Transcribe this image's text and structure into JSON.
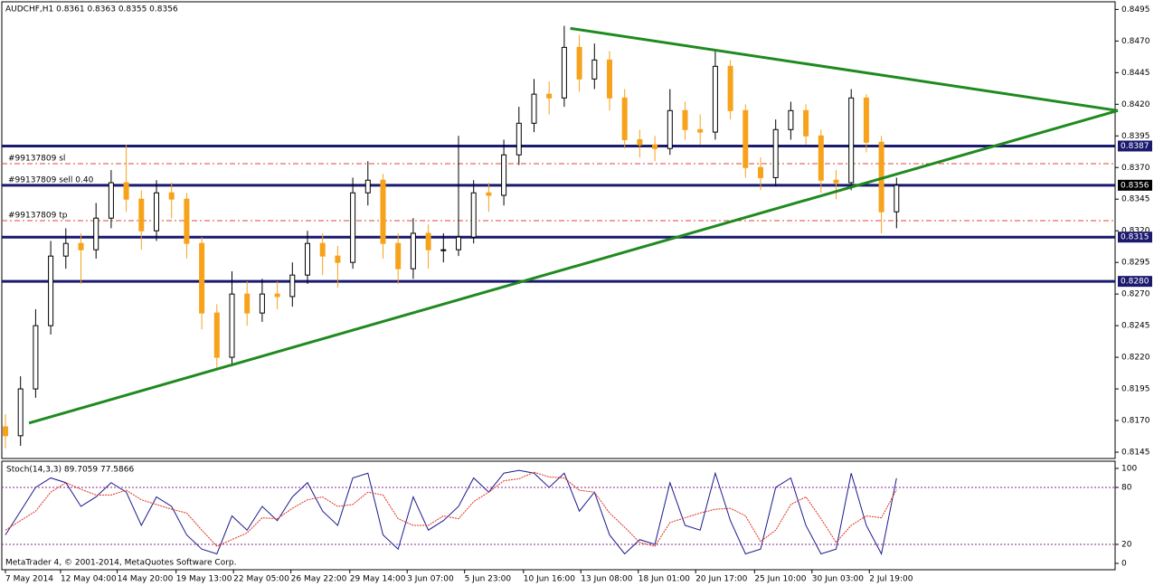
{
  "chart_data": [
    {
      "type": "candlestick",
      "title": "AUDCHF,H1  0.8361 0.8363 0.8355 0.8356",
      "footer": "MetaTrader 4, © 2001-2014, MetaQuotes Software Corp.",
      "up_color": "#000000",
      "down_color": "#f7a21b",
      "candles": [
        [
          0.8165,
          0.8175,
          0.8148,
          0.8158
        ],
        [
          0.8158,
          0.8205,
          0.815,
          0.8195
        ],
        [
          0.8195,
          0.8258,
          0.8188,
          0.8245
        ],
        [
          0.8245,
          0.8312,
          0.8238,
          0.83
        ],
        [
          0.83,
          0.8322,
          0.829,
          0.831
        ],
        [
          0.831,
          0.8318,
          0.8278,
          0.8305
        ],
        [
          0.8305,
          0.8342,
          0.8298,
          0.833
        ],
        [
          0.833,
          0.8368,
          0.8322,
          0.8358
        ],
        [
          0.8358,
          0.8388,
          0.8335,
          0.8345
        ],
        [
          0.8345,
          0.8352,
          0.8305,
          0.832
        ],
        [
          0.832,
          0.836,
          0.8312,
          0.835
        ],
        [
          0.835,
          0.8358,
          0.833,
          0.8345
        ],
        [
          0.8345,
          0.835,
          0.8298,
          0.831
        ],
        [
          0.831,
          0.8315,
          0.8242,
          0.8255
        ],
        [
          0.8255,
          0.8262,
          0.821,
          0.822
        ],
        [
          0.822,
          0.8288,
          0.8215,
          0.827
        ],
        [
          0.827,
          0.828,
          0.8245,
          0.8255
        ],
        [
          0.8255,
          0.8282,
          0.8248,
          0.827
        ],
        [
          0.827,
          0.828,
          0.8258,
          0.8268
        ],
        [
          0.8268,
          0.8295,
          0.826,
          0.8285
        ],
        [
          0.8285,
          0.832,
          0.8278,
          0.831
        ],
        [
          0.831,
          0.8318,
          0.8285,
          0.83
        ],
        [
          0.83,
          0.8308,
          0.8275,
          0.8295
        ],
        [
          0.8295,
          0.8362,
          0.829,
          0.835
        ],
        [
          0.835,
          0.8375,
          0.834,
          0.836
        ],
        [
          0.836,
          0.8365,
          0.8298,
          0.831
        ],
        [
          0.831,
          0.8318,
          0.8278,
          0.829
        ],
        [
          0.829,
          0.833,
          0.8282,
          0.8318
        ],
        [
          0.8318,
          0.8325,
          0.829,
          0.8305
        ],
        [
          0.8305,
          0.8318,
          0.8295,
          0.8305
        ],
        [
          0.8305,
          0.8395,
          0.83,
          0.8315
        ],
        [
          0.8315,
          0.836,
          0.831,
          0.835
        ],
        [
          0.835,
          0.8358,
          0.8335,
          0.8348
        ],
        [
          0.8348,
          0.8392,
          0.834,
          0.838
        ],
        [
          0.838,
          0.8418,
          0.8372,
          0.8405
        ],
        [
          0.8405,
          0.844,
          0.8398,
          0.8428
        ],
        [
          0.8428,
          0.8438,
          0.8412,
          0.8425
        ],
        [
          0.8425,
          0.8482,
          0.8418,
          0.8465
        ],
        [
          0.8465,
          0.8475,
          0.843,
          0.844
        ],
        [
          0.844,
          0.8468,
          0.8432,
          0.8455
        ],
        [
          0.8455,
          0.8462,
          0.8415,
          0.8425
        ],
        [
          0.8425,
          0.8432,
          0.8385,
          0.8392
        ],
        [
          0.8392,
          0.84,
          0.8378,
          0.8388
        ],
        [
          0.8388,
          0.8395,
          0.8375,
          0.8385
        ],
        [
          0.8385,
          0.8432,
          0.838,
          0.8415
        ],
        [
          0.8415,
          0.8422,
          0.8392,
          0.84
        ],
        [
          0.84,
          0.8412,
          0.8388,
          0.8398
        ],
        [
          0.8398,
          0.8462,
          0.8392,
          0.845
        ],
        [
          0.845,
          0.8455,
          0.8408,
          0.8415
        ],
        [
          0.8415,
          0.842,
          0.8362,
          0.837
        ],
        [
          0.837,
          0.8378,
          0.8352,
          0.8362
        ],
        [
          0.8362,
          0.8408,
          0.8355,
          0.84
        ],
        [
          0.84,
          0.8422,
          0.8392,
          0.8415
        ],
        [
          0.8415,
          0.842,
          0.8388,
          0.8395
        ],
        [
          0.8395,
          0.84,
          0.835,
          0.836
        ],
        [
          0.836,
          0.8368,
          0.8345,
          0.8358
        ],
        [
          0.8358,
          0.8432,
          0.8352,
          0.8425
        ],
        [
          0.8425,
          0.8428,
          0.8382,
          0.839
        ],
        [
          0.839,
          0.8395,
          0.8318,
          0.8335
        ],
        [
          0.8335,
          0.8362,
          0.8322,
          0.8356
        ]
      ],
      "ylim": [
        0.814,
        0.8501
      ],
      "yticks": [
        0.8145,
        {
          "value": 0.817,
          "label": "0.8170"
        },
        0.8195,
        {
          "value": 0.822,
          "label": "0.8220"
        },
        0.8245,
        {
          "value": 0.827,
          "label": "0.8270"
        },
        0.8295,
        {
          "value": 0.832,
          "label": "0.8320"
        },
        0.8345,
        {
          "value": 0.837,
          "label": "0.8370"
        },
        0.8395,
        {
          "value": 0.842,
          "label": "0.8420"
        },
        0.8445,
        {
          "value": 0.847,
          "label": "0.8470"
        },
        0.8495
      ],
      "xticks": [
        {
          "value": 0,
          "label": "7 May 2014"
        },
        {
          "value": 3.65,
          "label": "12 May 04:00"
        },
        {
          "value": 7.4,
          "label": "14 May 20:00"
        },
        {
          "value": 11.3,
          "label": "19 May 13:00"
        },
        {
          "value": 15.1,
          "label": "22 May 05:00"
        },
        {
          "value": 18.9,
          "label": "26 May 22:00"
        },
        {
          "value": 22.8,
          "label": "29 May 14:00"
        },
        {
          "value": 26.6,
          "label": "3 Jun 07:00"
        },
        {
          "value": 30.4,
          "label": "5 Jun 23:00"
        },
        {
          "value": 34.3,
          "label": "10 Jun 16:00"
        },
        {
          "value": 38.1,
          "label": "13 Jun 08:00"
        },
        {
          "value": 41.9,
          "label": "18 Jun 01:00"
        },
        {
          "value": 45.7,
          "label": "20 Jun 17:00"
        },
        {
          "value": 49.6,
          "label": "25 Jun 10:00"
        },
        {
          "value": 53.4,
          "label": "30 Jun 03:00"
        },
        {
          "value": 57.2,
          "label": "2 Jul 19:00"
        }
      ],
      "levels": [
        {
          "value": 0.8387,
          "color": "#1a1a6e"
        },
        {
          "value": 0.8356,
          "color": "#000000"
        },
        {
          "value": 0.8315,
          "color": "#1a1a6e"
        },
        {
          "value": {
            "value": 0.828,
            "label": "0.8280"
          },
          "color": "#1a1a6e"
        }
      ],
      "orders": [
        {
          "label": "#99137809 sl",
          "value": 0.8373,
          "color": "#e0473a"
        },
        {
          "label": "#99137809 sell 0.40",
          "value": 0.8356,
          "color": "#2e9b2e"
        },
        {
          "label": "#99137809 tp",
          "value": 0.8328,
          "color": "#e0473a"
        }
      ],
      "trendlines": [
        {
          "color": "#1f8a1f",
          "x": [
            1.56,
            73.65
          ],
          "y": [
            0.8168,
            0.8415
          ]
        },
        {
          "color": "#1f8a1f",
          "x": [
            37.4,
            73.65
          ],
          "y": [
            0.848,
            0.8415
          ]
        }
      ]
    },
    {
      "type": "line",
      "title": "Stoch(14,3,3) 89.7059 77.5866",
      "series": [
        {
          "color": "#1a1a8e",
          "dash": false,
          "values": [
            30,
            55,
            80,
            90,
            85,
            60,
            70,
            85,
            75,
            40,
            70,
            60,
            30,
            15,
            10,
            50,
            35,
            60,
            45,
            70,
            85,
            55,
            40,
            90,
            95,
            30,
            15,
            70,
            35,
            45,
            60,
            90,
            75,
            95,
            98,
            95,
            80,
            95,
            55,
            75,
            30,
            10,
            25,
            20,
            85,
            40,
            35,
            95,
            45,
            10,
            15,
            80,
            90,
            40,
            10,
            15,
            95,
            40,
            10,
            89.7059
          ]
        },
        {
          "color": "#e0301e",
          "dash": true,
          "values": [
            35,
            45,
            55,
            75,
            85,
            78,
            72,
            72,
            77,
            67,
            62,
            57,
            53,
            35,
            18,
            25,
            32,
            48,
            47,
            58,
            67,
            70,
            60,
            62,
            75,
            72,
            47,
            40,
            40,
            50,
            47,
            65,
            75,
            87,
            89,
            96,
            91,
            90,
            77,
            75,
            53,
            38,
            22,
            18,
            43,
            48,
            53,
            57,
            58,
            50,
            23,
            35,
            62,
            70,
            47,
            22,
            40,
            50,
            48,
            77.5866
          ]
        }
      ],
      "ylim": [
        -6.7,
        107.6
      ],
      "yticks": [
        0,
        20,
        80,
        100
      ],
      "levels": [
        20,
        80
      ]
    }
  ]
}
